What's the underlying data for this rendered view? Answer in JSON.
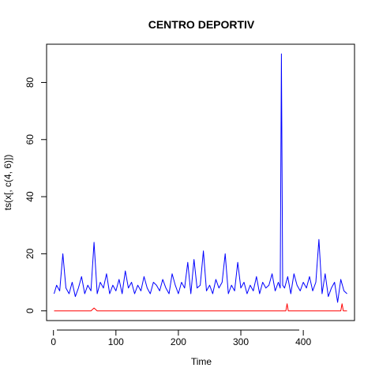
{
  "chart_data": {
    "type": "line",
    "title": "CENTRO DEPORTIV",
    "xlabel": "Time",
    "ylabel": "ts(x[, c(4, 6)])",
    "xlim": [
      -11,
      482
    ],
    "ylim": [
      -3.4,
      93.4
    ],
    "x_ticks": [
      0,
      100,
      200,
      300,
      400
    ],
    "y_ticks": [
      0,
      20,
      40,
      60,
      80
    ],
    "grid": false,
    "series": [
      {
        "color": "#0000ff",
        "x": [
          1,
          5,
          10,
          15,
          20,
          25,
          30,
          35,
          40,
          45,
          50,
          55,
          60,
          65,
          70,
          75,
          80,
          85,
          90,
          95,
          100,
          105,
          110,
          115,
          120,
          125,
          130,
          135,
          140,
          145,
          150,
          155,
          160,
          165,
          170,
          175,
          180,
          185,
          190,
          195,
          200,
          205,
          210,
          215,
          220,
          225,
          230,
          235,
          240,
          245,
          250,
          255,
          260,
          265,
          270,
          275,
          280,
          285,
          290,
          295,
          300,
          305,
          310,
          315,
          320,
          325,
          330,
          335,
          340,
          345,
          350,
          355,
          360,
          363,
          365,
          367,
          370,
          375,
          380,
          385,
          390,
          395,
          400,
          405,
          410,
          415,
          420,
          425,
          430,
          435,
          440,
          445,
          450,
          455,
          460,
          465,
          470
        ],
        "y": [
          6,
          9,
          7,
          20,
          8,
          6,
          10,
          5,
          8,
          12,
          6,
          9,
          7,
          24,
          6,
          10,
          8,
          13,
          6,
          9,
          7,
          11,
          6,
          14,
          8,
          10,
          6,
          9,
          7,
          12,
          8,
          6,
          10,
          9,
          7,
          11,
          8,
          6,
          13,
          9,
          6,
          10,
          8,
          17,
          6,
          18,
          8,
          9,
          21,
          7,
          9,
          6,
          11,
          8,
          10,
          20,
          6,
          9,
          7,
          17,
          8,
          10,
          6,
          9,
          7,
          12,
          6,
          10,
          8,
          9,
          13,
          7,
          10,
          8,
          90,
          9,
          8,
          12,
          6,
          13,
          9,
          7,
          10,
          8,
          12,
          7,
          10,
          25,
          6,
          13,
          5,
          8,
          10,
          3,
          11,
          7,
          6
        ]
      },
      {
        "color": "#ff0000",
        "x": [
          1,
          60,
          65,
          70,
          372,
          374,
          376,
          460,
          462,
          464,
          470
        ],
        "y": [
          0,
          0,
          1,
          0,
          0,
          2.5,
          0,
          0,
          2.5,
          0,
          0
        ]
      }
    ]
  }
}
